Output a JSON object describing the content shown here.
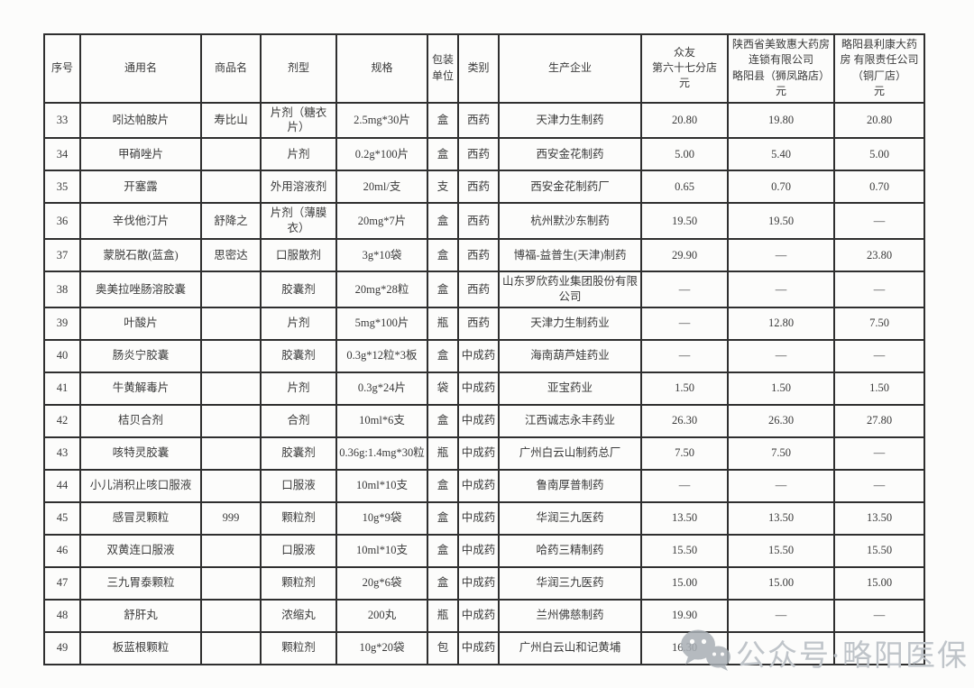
{
  "table": {
    "headers": [
      {
        "id": "no",
        "label": "序号"
      },
      {
        "id": "generic",
        "label": "通用名"
      },
      {
        "id": "brand",
        "label": "商品名"
      },
      {
        "id": "form",
        "label": "剂型"
      },
      {
        "id": "spec",
        "label": "规格"
      },
      {
        "id": "unit",
        "label": "包装\n单位"
      },
      {
        "id": "category",
        "label": "类别"
      },
      {
        "id": "maker",
        "label": "生产企业"
      },
      {
        "id": "price1",
        "label": "众友\n第六十七分店\n元"
      },
      {
        "id": "price2",
        "label": "陕西省美致惠大药房\n连锁有限公司\n略阳县（狮凤路店）\n元"
      },
      {
        "id": "price3",
        "label": "略阳县利康大药\n房 有限责任公司\n（铜厂店）\n元"
      }
    ],
    "rows": [
      [
        "33",
        "吲达帕胺片",
        "寿比山",
        "片剂（糖衣片）",
        "2.5mg*30片",
        "盒",
        "西药",
        "天津力生制药",
        "20.80",
        "19.80",
        "20.80"
      ],
      [
        "34",
        "甲硝唑片",
        "",
        "片剂",
        "0.2g*100片",
        "盒",
        "西药",
        "西安金花制药",
        "5.00",
        "5.40",
        "5.00"
      ],
      [
        "35",
        "开塞露",
        "",
        "外用溶液剂",
        "20ml/支",
        "支",
        "西药",
        "西安金花制药厂",
        "0.65",
        "0.70",
        "0.70"
      ],
      [
        "36",
        "辛伐他汀片",
        "舒降之",
        "片剂（薄膜衣）",
        "20mg*7片",
        "盒",
        "西药",
        "杭州默沙东制药",
        "19.50",
        "19.50",
        "—"
      ],
      [
        "37",
        "蒙脱石散(蓝盒)",
        "思密达",
        "口服散剂",
        "3g*10袋",
        "盒",
        "西药",
        "博福-益普生(天津)制药",
        "29.90",
        "—",
        "23.80"
      ],
      [
        "38",
        "奥美拉唑肠溶胶囊",
        "",
        "胶囊剂",
        "20mg*28粒",
        "盒",
        "西药",
        "山东罗欣药业集团股份有限公司",
        "—",
        "—",
        "—"
      ],
      [
        "39",
        "叶酸片",
        "",
        "片剂",
        "5mg*100片",
        "瓶",
        "西药",
        "天津力生制药业",
        "—",
        "12.80",
        "7.50"
      ],
      [
        "40",
        "肠炎宁胶囊",
        "",
        "胶囊剂",
        "0.3g*12粒*3板",
        "盒",
        "中成药",
        "海南葫芦娃药业",
        "—",
        "—",
        "—"
      ],
      [
        "41",
        "牛黄解毒片",
        "",
        "片剂",
        "0.3g*24片",
        "袋",
        "中成药",
        "亚宝药业",
        "1.50",
        "1.50",
        "1.50"
      ],
      [
        "42",
        "桔贝合剂",
        "",
        "合剂",
        "10ml*6支",
        "盒",
        "中成药",
        "江西诚志永丰药业",
        "26.30",
        "26.30",
        "27.80"
      ],
      [
        "43",
        "咳特灵胶囊",
        "",
        "胶囊剂",
        "0.36g:1.4mg*30粒",
        "瓶",
        "中成药",
        "广州白云山制药总厂",
        "7.50",
        "7.50",
        "—"
      ],
      [
        "44",
        "小儿消积止咳口服液",
        "",
        "口服液",
        "10ml*10支",
        "盒",
        "中成药",
        "鲁南厚普制药",
        "—",
        "—",
        "—"
      ],
      [
        "45",
        "感冒灵颗粒",
        "999",
        "颗粒剂",
        "10g*9袋",
        "盒",
        "中成药",
        "华润三九医药",
        "13.50",
        "13.50",
        "13.50"
      ],
      [
        "46",
        "双黄连口服液",
        "",
        "口服液",
        "10ml*10支",
        "盒",
        "中成药",
        "哈药三精制药",
        "15.50",
        "15.50",
        "15.50"
      ],
      [
        "47",
        "三九胃泰颗粒",
        "",
        "颗粒剂",
        "20g*6袋",
        "盒",
        "中成药",
        "华润三九医药",
        "15.00",
        "15.00",
        "15.00"
      ],
      [
        "48",
        "舒肝丸",
        "",
        "浓缩丸",
        "200丸",
        "瓶",
        "中成药",
        "兰州佛慈制药",
        "19.90",
        "—",
        "—"
      ],
      [
        "49",
        "板蓝根颗粒",
        "",
        "颗粒剂",
        "10g*20袋",
        "包",
        "中成药",
        "广州白云山和记黄埔",
        "16.30",
        "",
        ""
      ]
    ]
  },
  "watermark": {
    "icon": "wechat-icon",
    "text": "公众号·略阳医保"
  },
  "colors": {
    "border": "#2f2f2f",
    "text": "#3a3a3a",
    "background": "#fcfcfb",
    "watermark_text": "#bfc4c9",
    "watermark_icon": "#a9afb5"
  }
}
